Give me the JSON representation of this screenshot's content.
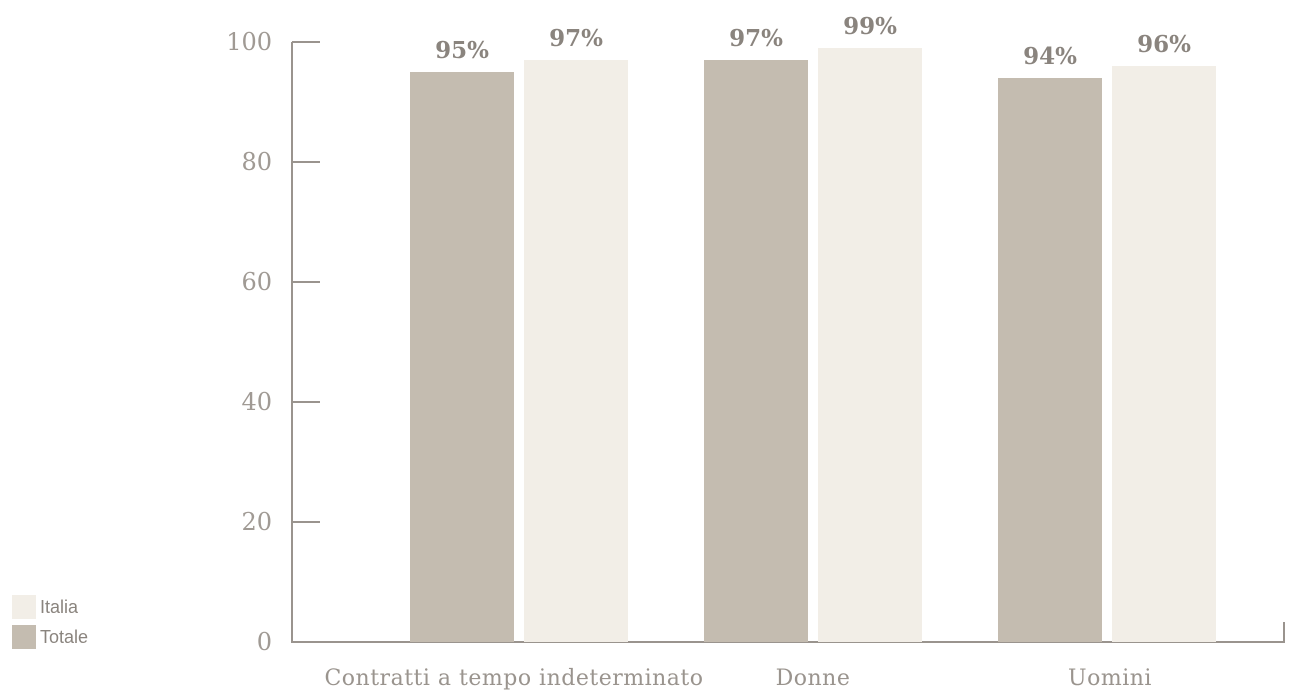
{
  "chart_data": {
    "type": "bar",
    "categories": [
      "Contratti a tempo indeterminato",
      "Donne",
      "Uomini"
    ],
    "series": [
      {
        "name": "Totale",
        "values": [
          95,
          97,
          94
        ],
        "labels": [
          "95%",
          "97%",
          "94%"
        ],
        "color": "#c4bcb0"
      },
      {
        "name": "Italia",
        "values": [
          97,
          99,
          96
        ],
        "labels": [
          "97%",
          "99%",
          "96%"
        ],
        "color": "#f2eee7"
      }
    ],
    "ylim": [
      0,
      100
    ],
    "yticks": [
      0,
      20,
      40,
      60,
      80,
      100
    ],
    "ytick_labels": [
      "0",
      "20",
      "40",
      "60",
      "80",
      "100"
    ],
    "grid": false,
    "legend_position": "bottom-left"
  },
  "legend": {
    "items": [
      {
        "label": "Italia",
        "color": "#f2eee7"
      },
      {
        "label": "Totale",
        "color": "#c4bcb0"
      }
    ]
  }
}
